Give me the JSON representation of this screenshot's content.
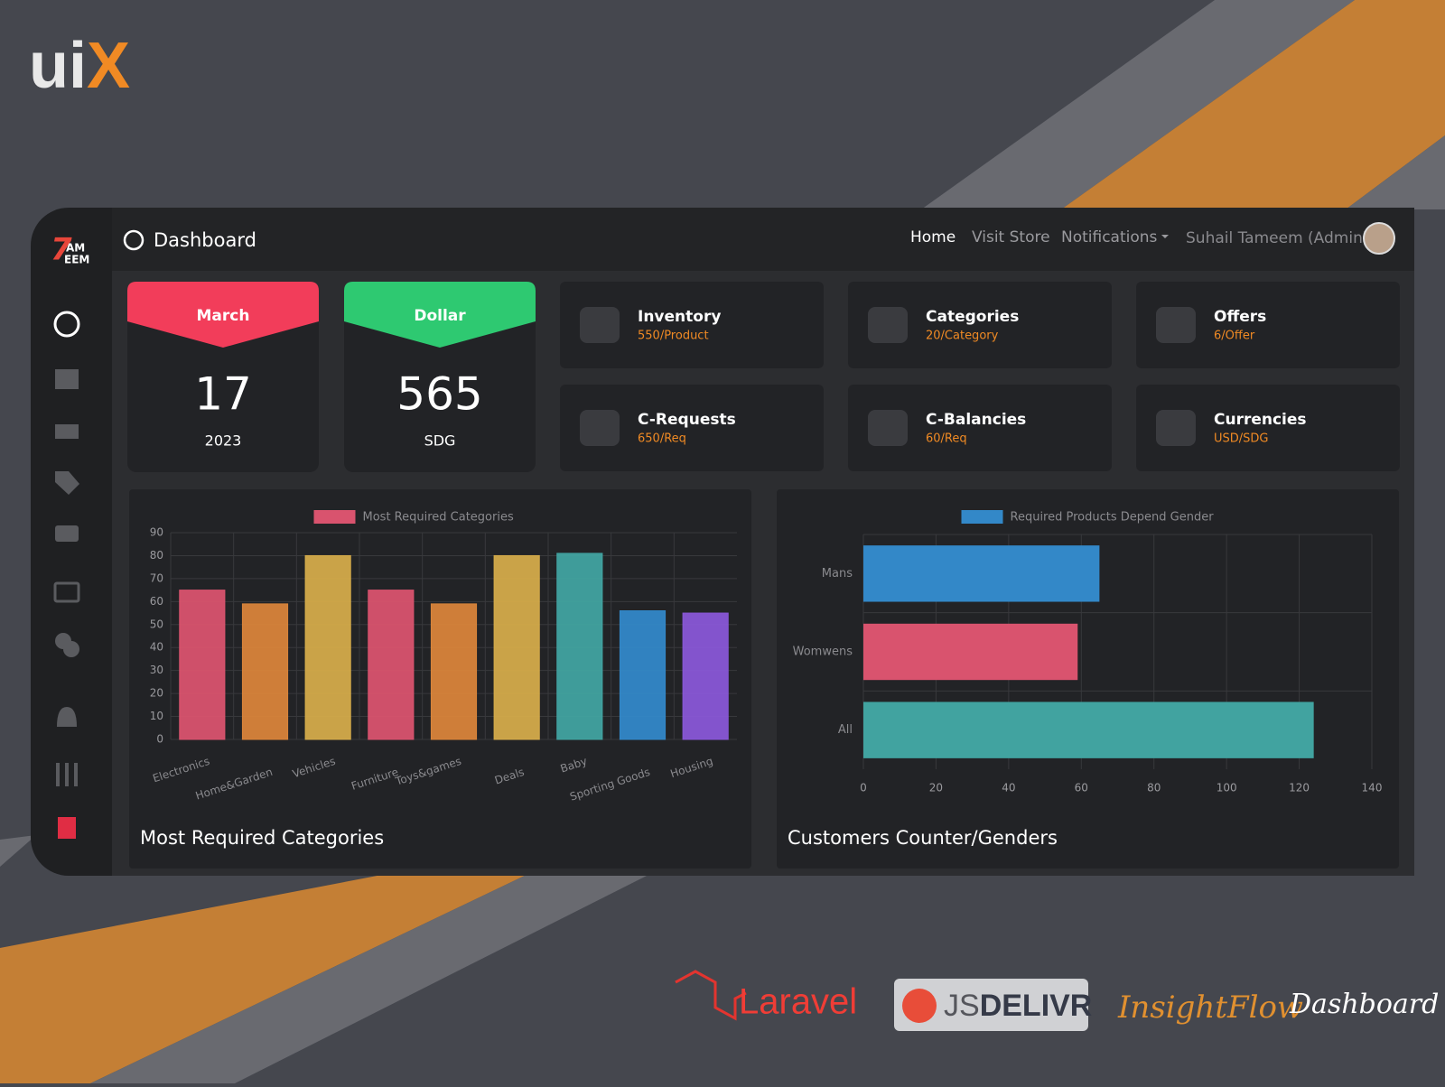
{
  "logo": {
    "first": "ui",
    "second": "X"
  },
  "brand": {
    "mark": "7",
    "top": "AM",
    "bottom": "EEM"
  },
  "header": {
    "title": "Dashboard",
    "nav": [
      "Home",
      "Visit Store",
      "Notifications"
    ],
    "user": "Suhail Tameem (Admin)"
  },
  "cards": [
    {
      "label": "March",
      "value": "17",
      "sub": "2023"
    },
    {
      "label": "Dollar",
      "value": "565",
      "sub": "SDG"
    }
  ],
  "tiles": [
    {
      "title": "Inventory",
      "sub": "550/Product"
    },
    {
      "title": "Categories",
      "sub": "20/Category"
    },
    {
      "title": "Offers",
      "sub": "6/Offer"
    },
    {
      "title": "C-Requests",
      "sub": "650/Req"
    },
    {
      "title": "C-Balancies",
      "sub": "60/Req"
    },
    {
      "title": "Currencies",
      "sub": "USD/SDG"
    }
  ],
  "chart_data": [
    {
      "type": "bar",
      "title": "Most Required Categories",
      "categories": [
        "Electronics",
        "Home&Garden",
        "Vehicles",
        "Furniture",
        "Toys&games",
        "Deals",
        "Baby",
        "Sporting Goods",
        "Housing"
      ],
      "series": [
        {
          "name": "Most Required Categories",
          "color": "#d9536e",
          "values": [
            65,
            59,
            80,
            65,
            59,
            80,
            81,
            56,
            55
          ],
          "colors": [
            "#d9536e",
            "#d9843a",
            "#d4ab4a",
            "#d9536e",
            "#d9843a",
            "#d4ab4a",
            "#41a3a0",
            "#3388c8",
            "#8957d6"
          ]
        }
      ],
      "ylim": [
        0,
        90
      ],
      "yticks": [
        0,
        10,
        20,
        30,
        40,
        50,
        60,
        70,
        80,
        90
      ],
      "grid": true
    },
    {
      "type": "barh",
      "title": "Customers Counter/Genders",
      "categories": [
        "Mans",
        "Womwens",
        "All"
      ],
      "series": [
        {
          "name": "Required Products Depend Gender",
          "color": "#3388c8",
          "values": [
            65,
            59,
            124
          ],
          "colors": [
            "#3388c8",
            "#d9536e",
            "#41a3a0"
          ]
        }
      ],
      "xlim": [
        0,
        140
      ],
      "xticks": [
        0,
        20,
        40,
        60,
        80,
        100,
        120,
        140
      ],
      "grid": true
    }
  ],
  "footer": {
    "laravel": "Laravel",
    "js": "JS",
    "delivr": "DELIVR",
    "insight": "InsightFlow",
    "dashboard": "Dashboard"
  }
}
